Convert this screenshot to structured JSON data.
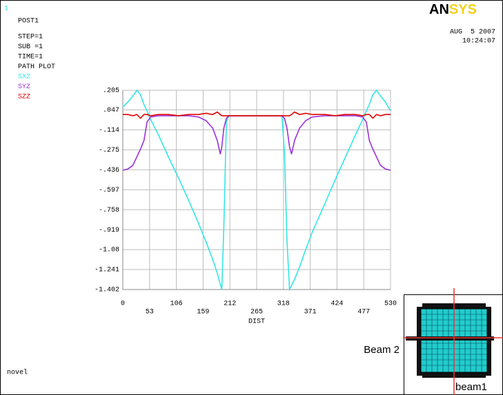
{
  "window_number": "1",
  "header_lines": [
    "POST1",
    "STEP=1",
    "SUB =1",
    "TIME=1",
    "PATH PLOT"
  ],
  "logo": [
    "AN",
    "SYS"
  ],
  "date": "AUG  5 2007",
  "time": "10:24:07",
  "footer": "novel",
  "inset": {
    "label_left": "Beam 2",
    "label_bottom": "beam1"
  },
  "chart_data": {
    "type": "line",
    "xlabel": "DIST",
    "x": [
      0,
      10,
      20,
      28,
      35,
      42,
      48,
      55,
      70,
      90,
      110,
      130,
      150,
      165,
      178,
      187,
      193,
      196,
      200,
      205,
      210,
      250,
      300,
      315,
      320,
      325,
      330,
      334,
      340,
      350,
      362,
      375,
      400,
      420,
      440,
      460,
      475,
      482,
      488,
      495,
      502,
      510,
      520,
      530
    ],
    "series": [
      {
        "name": "SXZ",
        "color": "#33e6e6",
        "values": [
          0.07,
          0.11,
          0.16,
          0.205,
          0.17,
          0.09,
          0.04,
          -0.03,
          -0.15,
          -0.33,
          -0.5,
          -0.68,
          -0.87,
          -1.02,
          -1.16,
          -1.27,
          -1.36,
          -1.4,
          -0.9,
          -0.05,
          0,
          0,
          0,
          0,
          -0.3,
          -1.0,
          -1.4,
          -1.37,
          -1.32,
          -1.22,
          -1.08,
          -0.94,
          -0.71,
          -0.52,
          -0.34,
          -0.16,
          -0.03,
          0.04,
          0.09,
          0.17,
          0.205,
          0.16,
          0.11,
          0.04
        ]
      },
      {
        "name": "SYZ",
        "color": "#9b30d9",
        "values": [
          -0.44,
          -0.43,
          -0.4,
          -0.33,
          -0.27,
          -0.2,
          -0.05,
          -0.01,
          0,
          0,
          0,
          0,
          -0.01,
          -0.04,
          -0.1,
          -0.2,
          -0.31,
          -0.25,
          -0.1,
          -0.02,
          0,
          0,
          0,
          0,
          -0.02,
          -0.1,
          -0.25,
          -0.31,
          -0.2,
          -0.1,
          -0.04,
          -0.01,
          0,
          0,
          0,
          0,
          -0.01,
          -0.05,
          -0.2,
          -0.27,
          -0.33,
          -0.4,
          -0.43,
          -0.44
        ]
      },
      {
        "name": "SZZ",
        "color": "#e00000",
        "values": [
          0.01,
          0.01,
          0,
          0.01,
          -0.02,
          0.01,
          0.01,
          0,
          0.01,
          0.01,
          0,
          0.01,
          0.01,
          0.02,
          0.01,
          0.03,
          0.01,
          0,
          0,
          0,
          0,
          0,
          0,
          0,
          0,
          0,
          0,
          0.01,
          0.03,
          0.01,
          0.02,
          0.01,
          0.01,
          0,
          0.01,
          0.01,
          0,
          0.01,
          0.01,
          -0.02,
          0.01,
          0,
          0.01,
          0.01
        ]
      }
    ],
    "xlim": [
      0,
      530
    ],
    "xticks": [
      0,
      53,
      106,
      159,
      212,
      265,
      318,
      371,
      424,
      477,
      530
    ],
    "ylim": [
      -1.402,
      0.205
    ],
    "yticks": [
      {
        "value": 0.205,
        "label": ".205"
      },
      {
        "value": 0.047,
        "label": ".047"
      },
      {
        "value": -0.114,
        "label": "-.114"
      },
      {
        "value": -0.275,
        "label": "-.275"
      },
      {
        "value": -0.436,
        "label": "-.436"
      },
      {
        "value": -0.597,
        "label": "-.597"
      },
      {
        "value": -0.758,
        "label": "-.758"
      },
      {
        "value": -0.919,
        "label": "-.919"
      },
      -1.08,
      -1.241,
      -1.402
    ],
    "grid": true,
    "legend": "left"
  }
}
